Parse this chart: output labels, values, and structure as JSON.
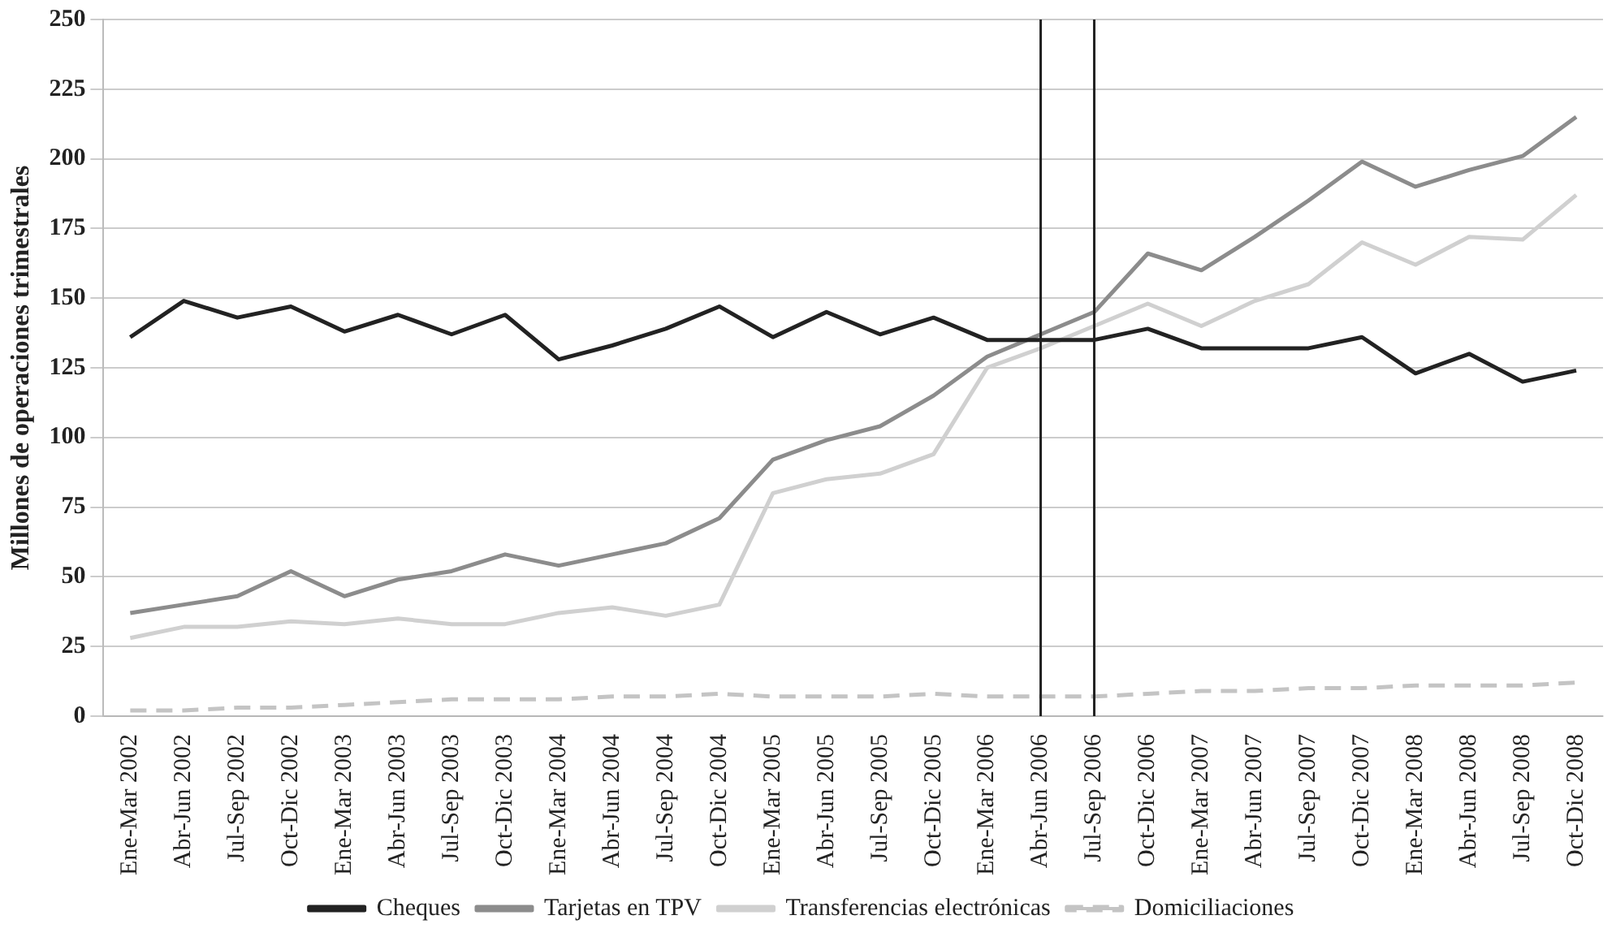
{
  "chart_data": {
    "type": "line",
    "ylabel": "Millones de operaciones trimestrales",
    "categories": [
      "Ene-Mar 2002",
      "Abr-Jun 2002",
      "Jul-Sep 2002",
      "Oct-Dic 2002",
      "Ene-Mar 2003",
      "Abr-Jun 2003",
      "Jul-Sep 2003",
      "Oct-Dic 2003",
      "Ene-Mar 2004",
      "Abr-Jun 2004",
      "Jul-Sep 2004",
      "Oct-Dic 2004",
      "Ene-Mar 2005",
      "Abr-Jun 2005",
      "Jul-Sep 2005",
      "Oct-Dic 2005",
      "Ene-Mar 2006",
      "Abr-Jun 2006",
      "Jul-Sep 2006",
      "Oct-Dic 2006",
      "Ene-Mar 2007",
      "Abr-Jun 2007",
      "Jul-Sep 2007",
      "Oct-Dic 2007",
      "Ene-Mar 2008",
      "Abr-Jun 2008",
      "Jul-Sep 2008",
      "Oct-Dic 2008"
    ],
    "series": [
      {
        "name": "Cheques",
        "color": "#222222",
        "line_style": "solid",
        "values": [
          136,
          149,
          143,
          147,
          138,
          144,
          137,
          144,
          128,
          133,
          139,
          147,
          136,
          145,
          137,
          143,
          135,
          135,
          135,
          139,
          132,
          132,
          132,
          136,
          123,
          130,
          120,
          124
        ]
      },
      {
        "name": "Tarjetas en TPV",
        "color": "#8c8c8c",
        "line_style": "solid",
        "values": [
          37,
          40,
          43,
          52,
          43,
          49,
          52,
          58,
          54,
          58,
          62,
          71,
          92,
          99,
          104,
          115,
          129,
          137,
          145,
          166,
          160,
          172,
          185,
          199,
          190,
          196,
          201,
          215
        ]
      },
      {
        "name": "Transferencias electrónicas",
        "color": "#d0d0d0",
        "line_style": "solid",
        "values": [
          28,
          32,
          32,
          34,
          33,
          35,
          33,
          33,
          37,
          39,
          36,
          40,
          80,
          85,
          87,
          94,
          125,
          132,
          140,
          148,
          140,
          149,
          155,
          170,
          162,
          172,
          171,
          187
        ]
      },
      {
        "name": "Domiciliaciones",
        "color": "#c4c4c4",
        "line_style": "dashed",
        "values": [
          2,
          2,
          3,
          3,
          4,
          5,
          6,
          6,
          6,
          7,
          7,
          8,
          7,
          7,
          7,
          8,
          7,
          7,
          7,
          8,
          9,
          9,
          10,
          10,
          11,
          11,
          11,
          12
        ]
      }
    ],
    "ylim": [
      0,
      250
    ],
    "yticks": [
      0,
      25,
      50,
      75,
      100,
      125,
      150,
      175,
      200,
      225,
      250
    ],
    "grid": "y",
    "legend": "bottom",
    "marker": "none",
    "ref_lines": [
      {
        "axis": "x",
        "value": "Abr-Jun 2006",
        "color": "#222222"
      },
      {
        "axis": "x",
        "value": "Jul-Sep 2006",
        "color": "#222222"
      }
    ]
  }
}
